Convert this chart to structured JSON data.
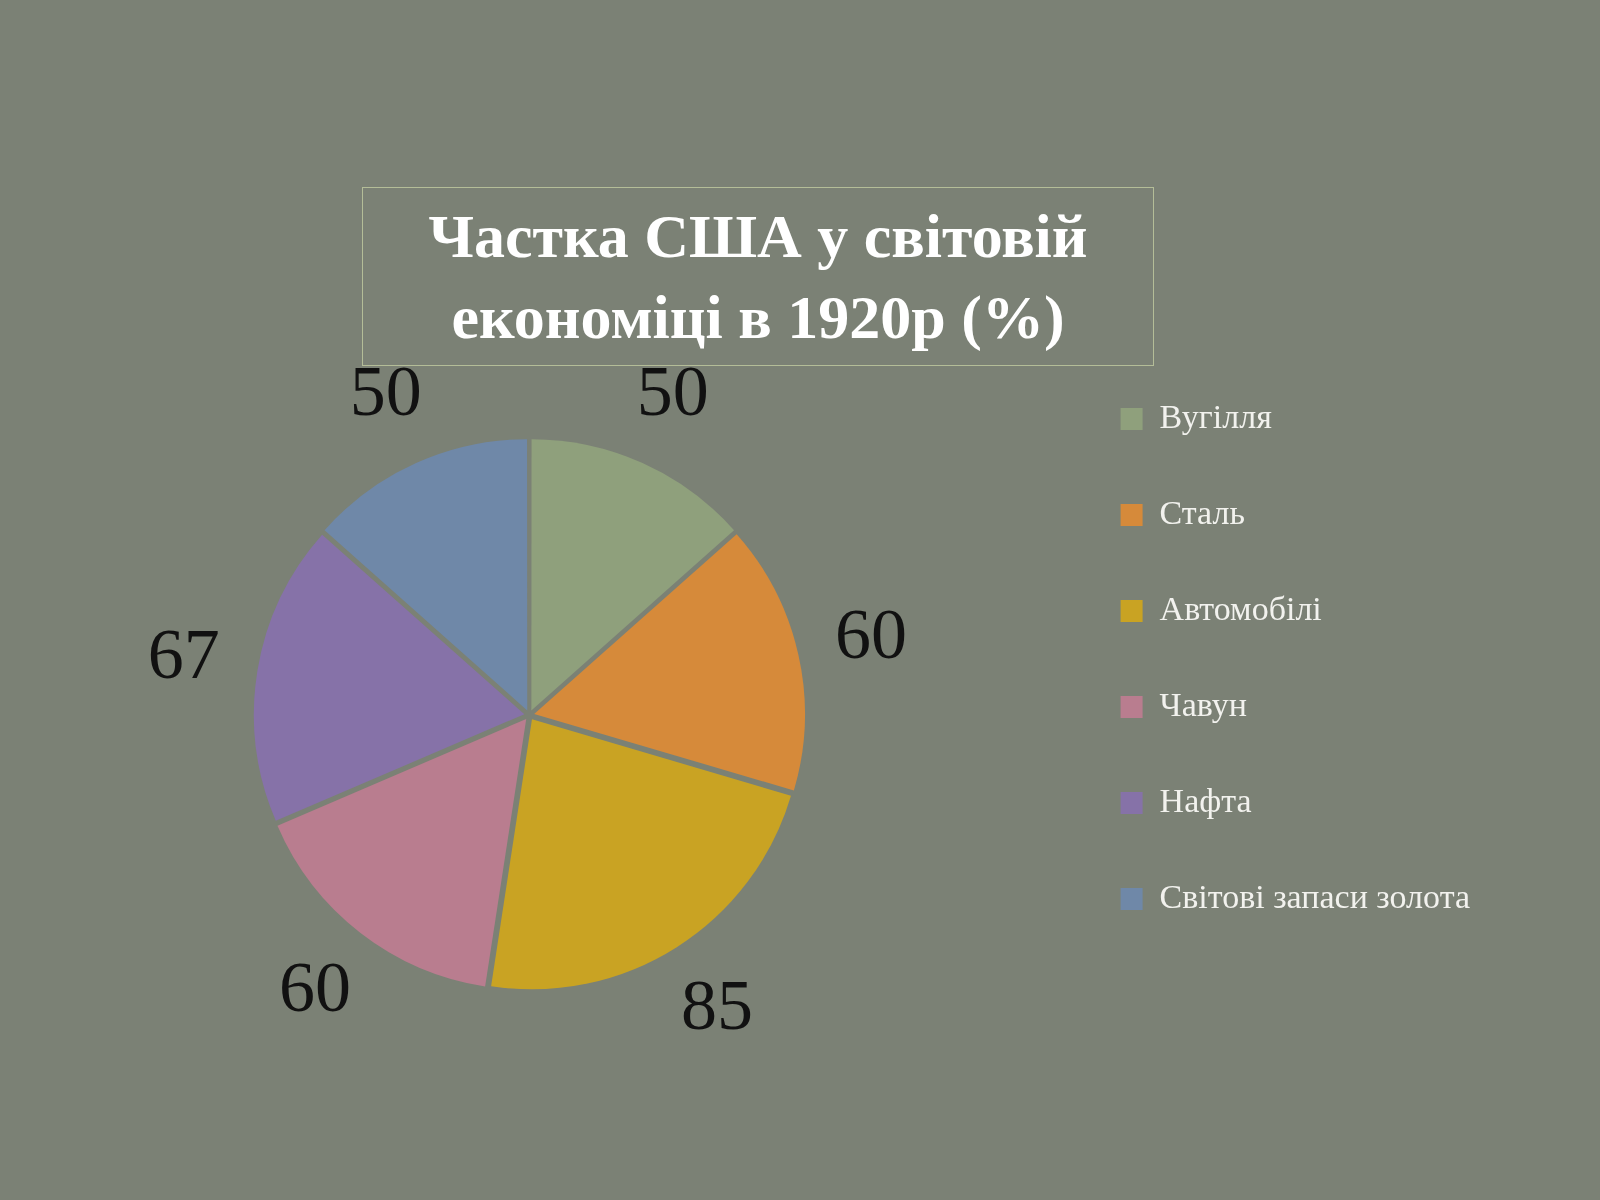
{
  "chart_data": {
    "type": "pie",
    "title": "Частка США у світовій економіці в 1920р (%)",
    "categories": [
      "Вугілля",
      "Сталь",
      "Автомобілі",
      "Чавун",
      "Нафта",
      "Світові запаси золота"
    ],
    "values": [
      50,
      60,
      85,
      60,
      67,
      50
    ],
    "colors": [
      "#8fa07c",
      "#d68a3a",
      "#c9a323",
      "#b97d8f",
      "#8672a8",
      "#6f88a8"
    ],
    "data_labels": true,
    "legend": "right"
  }
}
